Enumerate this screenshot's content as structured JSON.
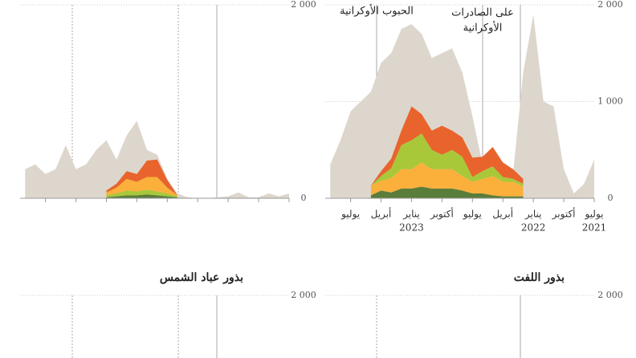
{
  "chart_data": [
    {
      "type": "area",
      "x": [
        0,
        1,
        2,
        3,
        4,
        5,
        6,
        7,
        8,
        9,
        10,
        11,
        12,
        13,
        14,
        15,
        16,
        17,
        18,
        19,
        20,
        21,
        22,
        23,
        24,
        25,
        26
      ],
      "xlim": [
        0,
        26.5
      ],
      "x_reversed": true,
      "ylim": [
        0,
        2000
      ],
      "yticks": [
        {
          "value": 2000,
          "label": "2 000"
        },
        0
      ],
      "grid": true,
      "series": [
        {
          "color": "#ddd6cc",
          "values": [
            50,
            20,
            50,
            10,
            10,
            60,
            20,
            10,
            0,
            0,
            10,
            50,
            200,
            450,
            500,
            800,
            650,
            400,
            600,
            500,
            350,
            300,
            550,
            300,
            250,
            350,
            300
          ]
        },
        {
          "color": "#5a7d3a",
          "values": [
            null,
            null,
            null,
            null,
            null,
            null,
            null,
            null,
            null,
            null,
            null,
            10,
            20,
            30,
            40,
            30,
            30,
            20,
            10,
            null,
            null,
            null,
            null,
            null,
            null,
            null,
            null
          ]
        },
        {
          "color": "#a8c83a",
          "values": [
            null,
            null,
            null,
            null,
            null,
            null,
            null,
            null,
            null,
            null,
            null,
            10,
            30,
            40,
            50,
            40,
            50,
            30,
            20,
            null,
            null,
            null,
            null,
            null,
            null,
            null,
            null
          ]
        },
        {
          "color": "#fbb03b",
          "values": [
            null,
            null,
            null,
            null,
            null,
            null,
            null,
            null,
            null,
            null,
            null,
            10,
            60,
            150,
            130,
            100,
            120,
            60,
            30,
            null,
            null,
            null,
            null,
            null,
            null,
            null,
            null
          ]
        },
        {
          "color": "#e8642c",
          "values": [
            null,
            null,
            null,
            null,
            null,
            null,
            null,
            null,
            null,
            null,
            null,
            0,
            80,
            180,
            170,
            80,
            80,
            40,
            20,
            null,
            null,
            null,
            null,
            null,
            null,
            null,
            null
          ]
        }
      ]
    },
    {
      "type": "area",
      "x": [
        0,
        1,
        2,
        3,
        4,
        5,
        6,
        7,
        8,
        9,
        10,
        11,
        12,
        13,
        14,
        15,
        16,
        17,
        18,
        19,
        20,
        21,
        22,
        23,
        24,
        25,
        26
      ],
      "xlim": [
        0,
        26.5
      ],
      "x_reversed": true,
      "ylim": [
        0,
        2000
      ],
      "yticks": [
        {
          "value": 2000,
          "label": "2 000"
        },
        {
          "value": 1000,
          "label": "1 000"
        },
        0
      ],
      "grid": true,
      "xticks": [
        {
          "value": 0,
          "label": "يوليو",
          "year": "2021"
        },
        {
          "value": 3,
          "label": "أكتوبر"
        },
        {
          "value": 6,
          "label": "يناير",
          "year": "2022"
        },
        {
          "value": 9,
          "label": "أبريل"
        },
        {
          "value": 12,
          "label": "يوليو"
        },
        {
          "value": 15,
          "label": "أكتوبر"
        },
        {
          "value": 18,
          "label": "يناير",
          "year": "2023"
        },
        {
          "value": 21,
          "label": "أبريل"
        },
        {
          "value": 24,
          "label": "يوليو"
        }
      ],
      "annotations": [
        "الحبوب الأوكرانية",
        "على الصادرات",
        "الأوكرانية"
      ],
      "series": [
        {
          "color": "#ddd6cc",
          "values": [
            400,
            150,
            50,
            300,
            950,
            1000,
            1900,
            1300,
            250,
            150,
            200,
            350,
            850,
            1300,
            1550,
            1500,
            1450,
            1700,
            1800,
            1750,
            1500,
            1400,
            1100,
            1000,
            900,
            600,
            350
          ]
        },
        {
          "color": "#5a7d3a",
          "values": [
            null,
            null,
            null,
            null,
            null,
            null,
            null,
            20,
            20,
            20,
            30,
            50,
            50,
            80,
            100,
            100,
            100,
            120,
            100,
            100,
            60,
            80,
            30,
            null,
            null,
            null,
            null
          ]
        },
        {
          "color": "#fbb03b",
          "values": [
            null,
            null,
            null,
            null,
            null,
            null,
            null,
            100,
            150,
            150,
            200,
            150,
            120,
            150,
            200,
            200,
            200,
            250,
            200,
            200,
            150,
            100,
            100,
            null,
            null,
            null,
            null
          ]
        },
        {
          "color": "#a8c83a",
          "values": [
            null,
            null,
            null,
            null,
            null,
            null,
            null,
            30,
            30,
            50,
            100,
            80,
            50,
            200,
            200,
            150,
            200,
            300,
            300,
            250,
            100,
            50,
            0,
            null,
            null,
            null,
            null
          ]
        },
        {
          "color": "#e8642c",
          "values": [
            null,
            null,
            null,
            null,
            null,
            null,
            null,
            50,
            100,
            150,
            200,
            150,
            200,
            200,
            200,
            300,
            200,
            200,
            350,
            150,
            100,
            50,
            0,
            null,
            null,
            null,
            null
          ]
        }
      ]
    },
    {
      "type": "area",
      "title": "بذور عباد الشمس",
      "ylim": [
        0,
        2000
      ],
      "yticks": [
        {
          "value": 2000,
          "label": "2 000"
        }
      ],
      "grid": true
    },
    {
      "type": "area",
      "title": "بذور اللفت",
      "ylim": [
        0,
        2000
      ],
      "yticks": [
        {
          "value": 2000,
          "label": "2 000"
        }
      ],
      "grid": true
    }
  ]
}
